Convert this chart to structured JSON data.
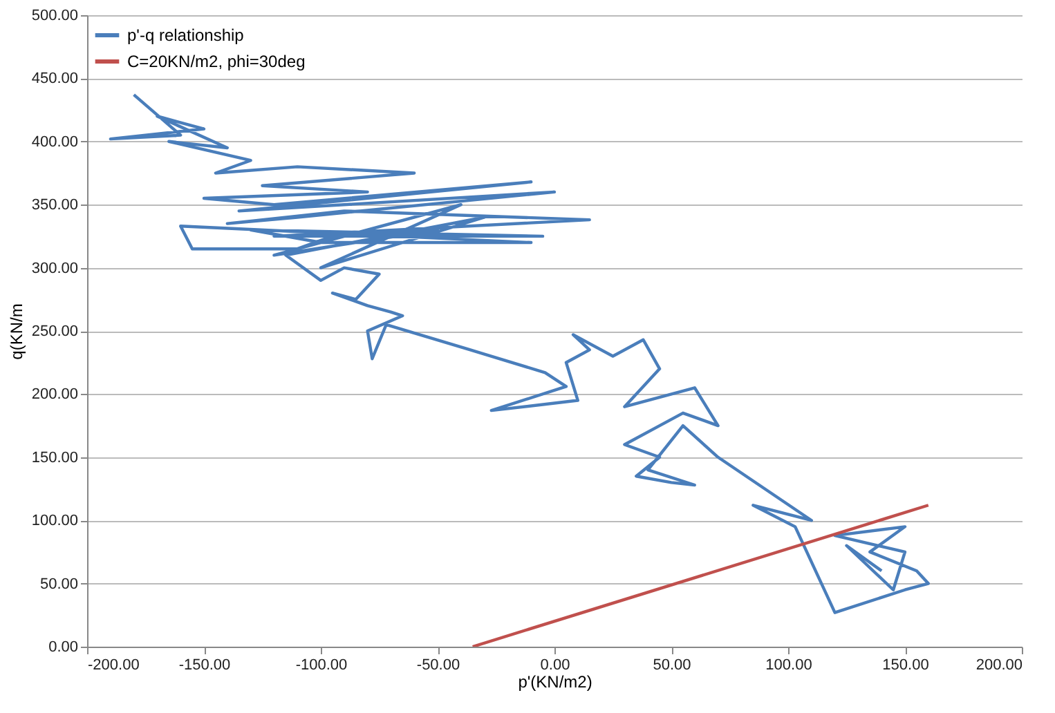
{
  "chart_data": {
    "type": "line",
    "xlabel": "p'(KN/m2)",
    "ylabel": "q(KN/m",
    "xlim": [
      -200,
      200
    ],
    "ylim": [
      0,
      500
    ],
    "xticks": [
      {
        "value": -200,
        "label": "-200.00"
      },
      {
        "value": -150,
        "label": "-150.00"
      },
      {
        "value": -100,
        "label": "-100.00"
      },
      {
        "value": -50,
        "label": "-50.00"
      },
      {
        "value": 0,
        "label": "0.00"
      },
      {
        "value": 50,
        "label": "50.00"
      },
      {
        "value": 100,
        "label": "100.00"
      },
      {
        "value": 150,
        "label": "150.00"
      },
      {
        "value": 200,
        "label": "200.00"
      }
    ],
    "yticks": [
      {
        "value": 0,
        "label": "0.00"
      },
      {
        "value": 50,
        "label": "50.00"
      },
      {
        "value": 100,
        "label": "100.00"
      },
      {
        "value": 150,
        "label": "150.00"
      },
      {
        "value": 200,
        "label": "200.00"
      },
      {
        "value": 250,
        "label": "250.00"
      },
      {
        "value": 300,
        "label": "300.00"
      },
      {
        "value": 350,
        "label": "350.00"
      },
      {
        "value": 400,
        "label": "400.00"
      },
      {
        "value": 450,
        "label": "450.00"
      },
      {
        "value": 500,
        "label": "500.00"
      }
    ],
    "grid": "y",
    "legend": "top left",
    "marker": "none",
    "line_style": "solid",
    "series": [
      {
        "name": "p'-q relationship",
        "color": "#4a7ebb",
        "x": [
          -180,
          -160,
          -190,
          -150,
          -170,
          -140,
          -165,
          -130,
          -145,
          -110,
          -60,
          -125,
          -80,
          -150,
          -120,
          -10,
          -135,
          0,
          -110,
          -140,
          -90,
          15,
          -120,
          -5,
          -130,
          -100,
          -10,
          -160,
          -155,
          -110,
          -95,
          -50,
          -120,
          -40,
          -100,
          -30,
          -115,
          -100,
          -90,
          -75,
          -85,
          -95,
          -80,
          -70,
          -65,
          -80,
          -78,
          -72,
          -36,
          -4,
          5,
          -27,
          10,
          5,
          15,
          8,
          25,
          38,
          45,
          30,
          60,
          70,
          55,
          45,
          30,
          45,
          35,
          50,
          60,
          40,
          55,
          70,
          110,
          85,
          103,
          120,
          150,
          160,
          155,
          135,
          150,
          120,
          150,
          145,
          125,
          140
        ],
        "values": [
          437,
          405,
          402,
          410,
          420,
          395,
          400,
          385,
          375,
          380,
          375,
          365,
          360,
          355,
          350,
          368,
          345,
          360,
          340,
          335,
          345,
          338,
          325,
          325,
          330,
          320,
          320,
          333,
          315,
          315,
          325,
          330,
          310,
          350,
          300,
          340,
          310,
          290,
          300,
          295,
          275,
          280,
          270,
          265,
          262,
          250,
          228,
          255,
          235,
          217,
          206,
          187,
          195,
          225,
          235,
          247,
          230,
          243,
          220,
          190,
          205,
          175,
          185,
          175,
          160,
          150,
          135,
          130,
          128,
          140,
          175,
          150,
          100,
          112,
          95,
          27,
          45,
          50,
          60,
          75,
          95,
          88,
          75,
          45,
          80,
          60
        ]
      },
      {
        "name": "C=20KN/m2, phi=30deg",
        "color": "#c0504d",
        "x": [
          -35,
          160
        ],
        "values": [
          0,
          112
        ]
      }
    ]
  }
}
